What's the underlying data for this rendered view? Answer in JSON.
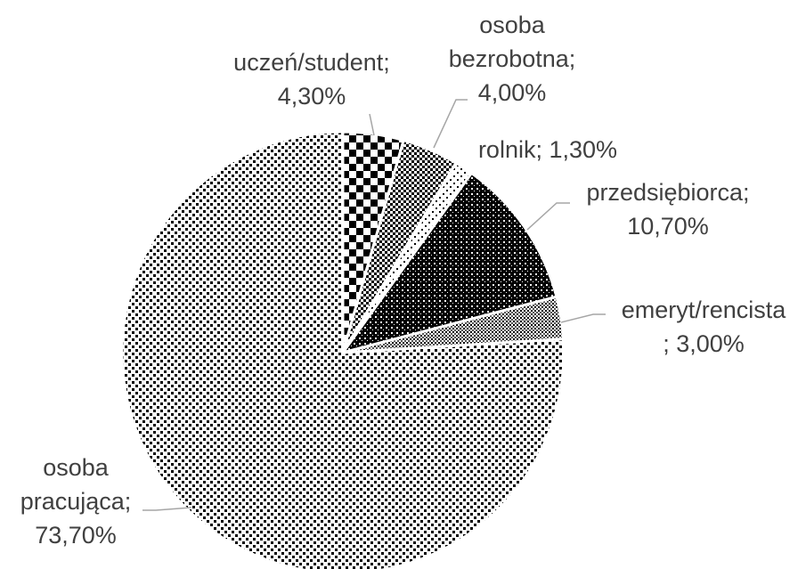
{
  "chart_data": {
    "type": "pie",
    "categories": [
      "uczeń/student",
      "osoba bezrobotna",
      "rolnik",
      "przedsiębiorca",
      "emeryt/rencista",
      "osoba pracująca"
    ],
    "values": [
      4.3,
      4.0,
      1.3,
      10.7,
      3.0,
      73.7
    ],
    "value_labels": [
      "4,30%",
      "4,00%",
      "1,30%",
      "10,70%",
      "3,00%",
      "73,70%"
    ],
    "separator": ";"
  }
}
